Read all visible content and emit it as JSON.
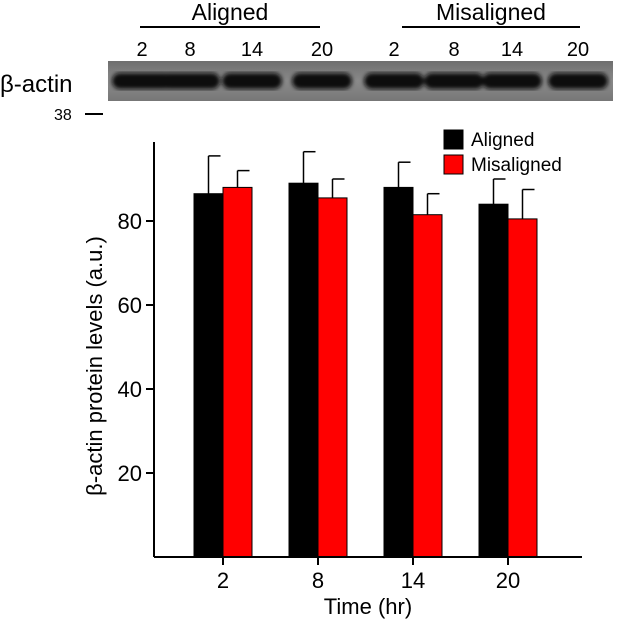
{
  "blot": {
    "group_labels": [
      "Aligned",
      "Misaligned"
    ],
    "lane_labels": [
      "2",
      "8",
      "14",
      "20",
      "2",
      "8",
      "14",
      "20"
    ],
    "protein_label": "β-actin",
    "marker_label": "38"
  },
  "chart_data": {
    "type": "bar",
    "title": "",
    "xlabel": "Time (hr)",
    "ylabel": "β-actin protein levels (a.u.)",
    "categories": [
      "2",
      "8",
      "14",
      "20"
    ],
    "yticks": [
      "20",
      "40",
      "60",
      "80"
    ],
    "ylim": [
      0,
      100
    ],
    "grid": false,
    "legend_position": "top-right",
    "series": [
      {
        "name": "Aligned",
        "color": "#000000",
        "values": [
          86.5,
          89,
          88,
          84
        ],
        "errors": [
          9,
          7.5,
          6,
          6
        ]
      },
      {
        "name": "Misaligned",
        "color": "#ff0000",
        "values": [
          88,
          85.5,
          81.5,
          80.5
        ],
        "errors": [
          4,
          4.5,
          5,
          7
        ]
      }
    ]
  }
}
